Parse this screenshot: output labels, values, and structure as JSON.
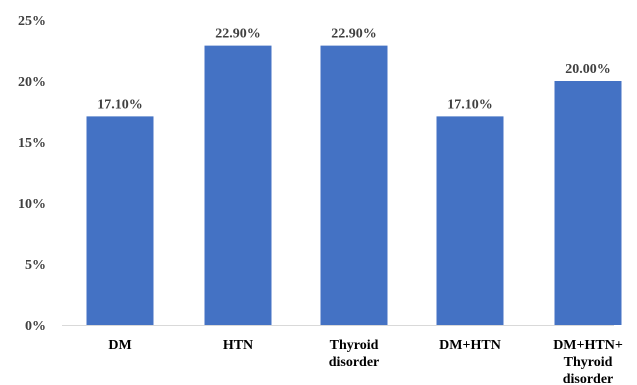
{
  "chart_data": {
    "type": "bar",
    "categories": [
      [
        "DM"
      ],
      [
        "HTN"
      ],
      [
        "Thyroid",
        "disorder"
      ],
      [
        "DM+HTN"
      ],
      [
        "DM+HTN+",
        "Thyroid",
        "disorder"
      ]
    ],
    "values": [
      17.1,
      22.9,
      22.9,
      17.1,
      20.0
    ],
    "data_labels": [
      "17.10%",
      "22.90%",
      "22.90%",
      "17.10%",
      "20.00%"
    ],
    "y_ticks": [
      "0%",
      "5%",
      "10%",
      "15%",
      "20%",
      "25%"
    ],
    "ylim": [
      0,
      25
    ],
    "grid": false,
    "legend": "none",
    "title": "",
    "xlabel": "",
    "ylabel": "",
    "bar_color": "#4472c4"
  }
}
